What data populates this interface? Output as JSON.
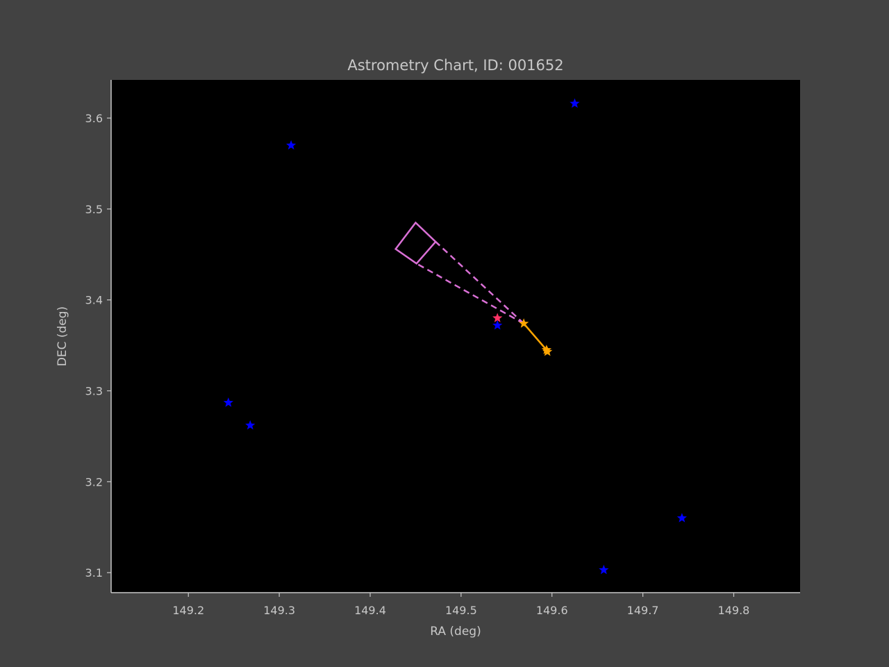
{
  "chart_data": {
    "type": "scatter",
    "title": "Astrometry Chart, ID: 001652",
    "xlabel": "RA (deg)",
    "ylabel": "DEC (deg)",
    "xlim": [
      149.115,
      149.873
    ],
    "ylim": [
      3.078,
      3.642
    ],
    "xticks": [
      "149.2",
      "149.3",
      "149.4",
      "149.5",
      "149.6",
      "149.7",
      "149.8"
    ],
    "yticks": [
      "3.1",
      "3.2",
      "3.3",
      "3.4",
      "3.5",
      "3.6"
    ],
    "grid": false,
    "colors": {
      "figure_bg": "#424242",
      "axes_bg": "#000000",
      "axis_text": "#c8c8c8",
      "field_stars": "#0000ff",
      "target": "#ff3366",
      "track": "#ffa500",
      "fov": "#da70d6"
    },
    "field_stars": [
      {
        "ra": 149.313,
        "dec": 3.57
      },
      {
        "ra": 149.625,
        "dec": 3.616
      },
      {
        "ra": 149.244,
        "dec": 3.287
      },
      {
        "ra": 149.268,
        "dec": 3.262
      },
      {
        "ra": 149.54,
        "dec": 3.372
      },
      {
        "ra": 149.743,
        "dec": 3.16
      },
      {
        "ra": 149.657,
        "dec": 3.103
      }
    ],
    "target": {
      "ra": 149.54,
      "dec": 3.38
    },
    "track": [
      {
        "ra": 149.569,
        "dec": 3.374
      },
      {
        "ra": 149.594,
        "dec": 3.345
      },
      {
        "ra": 149.595,
        "dec": 3.343
      }
    ],
    "fov_box": [
      {
        "ra": 149.428,
        "dec": 3.456
      },
      {
        "ra": 149.45,
        "dec": 3.485
      },
      {
        "ra": 149.472,
        "dec": 3.464
      },
      {
        "ra": 149.451,
        "dec": 3.44
      }
    ],
    "fov_apex": {
      "ra": 149.569,
      "dec": 3.374
    }
  }
}
